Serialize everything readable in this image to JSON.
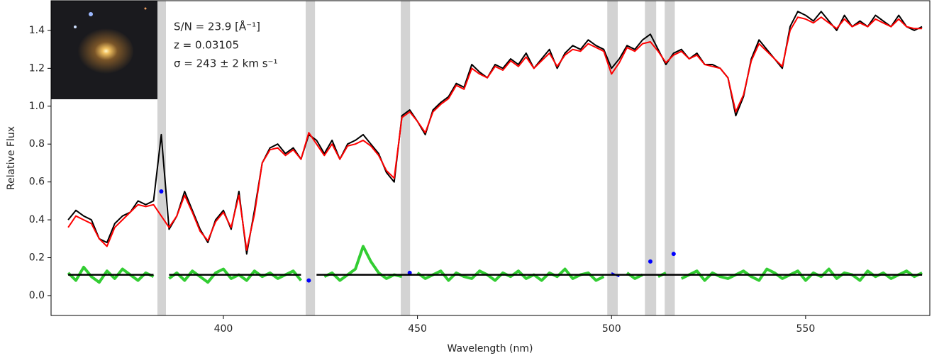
{
  "chart_data": {
    "type": "line",
    "xlabel": "Wavelength (nm)",
    "ylabel": "Relative Flux",
    "annotations": [
      "S/N = 23.9 [Å⁻¹]",
      "z =  0.03105",
      "σ = 243 ± 2 km s⁻¹"
    ],
    "xlim": [
      355.6,
      582.0
    ],
    "ylim": [
      -0.105,
      1.557
    ],
    "xticks": [
      400,
      450,
      500,
      550
    ],
    "yticks": [
      {
        "value": 0,
        "label": "0.0"
      },
      0.2,
      0.4,
      0.6,
      0.8,
      {
        "value": 1,
        "label": "1.0"
      },
      1.2,
      1.4
    ],
    "masks": {
      "color": "#d3d3d3",
      "ranges": [
        [
          383.0,
          385.2
        ],
        [
          421.2,
          423.6
        ],
        [
          445.7,
          448.1
        ],
        [
          498.9,
          501.6
        ],
        [
          508.6,
          511.5
        ],
        [
          513.7,
          516.3
        ]
      ]
    },
    "x": [
      360,
      362,
      364,
      366,
      368,
      370,
      372,
      374,
      376,
      378,
      380,
      382,
      384,
      386,
      388,
      390,
      392,
      394,
      396,
      398,
      400,
      402,
      404,
      406,
      408,
      410,
      412,
      414,
      416,
      418,
      420,
      422,
      424,
      426,
      428,
      430,
      432,
      434,
      436,
      438,
      440,
      442,
      444,
      446,
      448,
      450,
      452,
      454,
      456,
      458,
      460,
      462,
      464,
      466,
      468,
      470,
      472,
      474,
      476,
      478,
      480,
      482,
      484,
      486,
      488,
      490,
      492,
      494,
      496,
      498,
      500,
      502,
      504,
      506,
      508,
      510,
      512,
      514,
      516,
      518,
      520,
      522,
      524,
      526,
      528,
      530,
      532,
      534,
      536,
      538,
      540,
      542,
      544,
      546,
      548,
      550,
      552,
      554,
      556,
      558,
      560,
      562,
      564,
      566,
      568,
      570,
      572,
      574,
      576,
      578,
      580
    ],
    "series": [
      {
        "color": "#32cd32",
        "values": [
          0.12,
          0.08,
          0.15,
          0.1,
          0.07,
          0.13,
          0.09,
          0.14,
          0.11,
          0.08,
          0.12,
          0.1,
          null,
          0.09,
          0.12,
          0.08,
          0.13,
          0.1,
          0.07,
          0.12,
          0.14,
          0.09,
          0.11,
          0.08,
          0.13,
          0.1,
          0.12,
          0.09,
          0.11,
          0.13,
          0.08,
          null,
          null,
          0.1,
          0.12,
          0.08,
          0.11,
          0.14,
          0.26,
          0.18,
          0.12,
          0.09,
          0.11,
          0.1,
          null,
          0.12,
          0.09,
          0.11,
          0.13,
          0.08,
          0.12,
          0.1,
          0.09,
          0.13,
          0.11,
          0.08,
          0.12,
          0.1,
          0.13,
          0.09,
          0.11,
          0.08,
          0.12,
          0.1,
          0.14,
          0.09,
          0.11,
          0.12,
          0.08,
          0.1,
          null,
          null,
          0.12,
          0.09,
          0.11,
          null,
          0.1,
          0.12,
          null,
          0.09,
          0.11,
          0.13,
          0.08,
          0.12,
          0.1,
          0.09,
          0.11,
          0.13,
          0.1,
          0.08,
          0.14,
          0.12,
          0.09,
          0.11,
          0.13,
          0.08,
          0.12,
          0.1,
          0.14,
          0.09,
          0.12,
          0.11,
          0.08,
          0.13,
          0.1,
          0.12,
          0.09,
          0.11,
          0.13,
          0.1,
          0.12
        ]
      },
      {
        "color": "#0000ff",
        "values": [
          null,
          null,
          null,
          null,
          null,
          null,
          null,
          null,
          null,
          null,
          null,
          null,
          0.55,
          null,
          null,
          null,
          null,
          null,
          null,
          null,
          null,
          null,
          null,
          null,
          null,
          null,
          null,
          null,
          null,
          null,
          null,
          0.08,
          null,
          null,
          null,
          null,
          null,
          null,
          null,
          null,
          null,
          null,
          null,
          null,
          0.12,
          null,
          null,
          null,
          null,
          null,
          null,
          null,
          null,
          null,
          null,
          null,
          null,
          null,
          null,
          null,
          null,
          null,
          null,
          null,
          null,
          null,
          null,
          null,
          null,
          null,
          0.12,
          0.1,
          null,
          null,
          null,
          0.18,
          null,
          null,
          0.22,
          null,
          null,
          null,
          null,
          null,
          null,
          null,
          null,
          null,
          null,
          null,
          null,
          null,
          null,
          null,
          null,
          null,
          null,
          null,
          null,
          null,
          null,
          null,
          null,
          null,
          null,
          null,
          null,
          null,
          null,
          null,
          null
        ]
      },
      {
        "color": "#000000",
        "values": [
          0.11,
          0.11,
          0.11,
          0.11,
          0.11,
          0.11,
          0.11,
          0.11,
          0.11,
          0.11,
          0.11,
          0.11,
          null,
          0.11,
          0.11,
          0.11,
          0.11,
          0.11,
          0.11,
          0.11,
          0.11,
          0.11,
          0.11,
          0.11,
          0.11,
          0.11,
          0.11,
          0.11,
          0.11,
          0.11,
          0.11,
          null,
          0.11,
          0.11,
          0.11,
          0.11,
          0.11,
          0.11,
          0.11,
          0.11,
          0.11,
          0.11,
          0.11,
          0.11,
          0.11,
          0.11,
          0.11,
          0.11,
          0.11,
          0.11,
          0.11,
          0.11,
          0.11,
          0.11,
          0.11,
          0.11,
          0.11,
          0.11,
          0.11,
          0.11,
          0.11,
          0.11,
          0.11,
          0.11,
          0.11,
          0.11,
          0.11,
          0.11,
          0.11,
          0.11,
          0.11,
          0.11,
          0.11,
          0.11,
          0.11,
          0.11,
          0.11,
          0.11,
          0.11,
          0.11,
          0.11,
          0.11,
          0.11,
          0.11,
          0.11,
          0.11,
          0.11,
          0.11,
          0.11,
          0.11,
          0.11,
          0.11,
          0.11,
          0.11,
          0.11,
          0.11,
          0.11,
          0.11,
          0.11,
          0.11,
          0.11,
          0.11,
          0.11,
          0.11,
          0.11,
          0.11,
          0.11,
          0.11,
          0.11,
          0.11,
          0.11
        ]
      },
      {
        "color": "#000000",
        "values": [
          0.4,
          0.45,
          0.42,
          0.4,
          0.3,
          0.28,
          0.38,
          0.42,
          0.44,
          0.5,
          0.48,
          0.5,
          0.85,
          0.35,
          0.42,
          0.55,
          0.45,
          0.35,
          0.28,
          0.4,
          0.45,
          0.35,
          0.55,
          0.22,
          0.45,
          0.7,
          0.78,
          0.8,
          0.75,
          0.78,
          0.72,
          0.85,
          0.82,
          0.75,
          0.82,
          0.72,
          0.8,
          0.82,
          0.85,
          0.8,
          0.75,
          0.65,
          0.6,
          0.95,
          0.98,
          0.92,
          0.85,
          0.98,
          1.02,
          1.05,
          1.12,
          1.1,
          1.22,
          1.18,
          1.15,
          1.22,
          1.2,
          1.25,
          1.22,
          1.28,
          1.2,
          1.25,
          1.3,
          1.2,
          1.28,
          1.32,
          1.3,
          1.35,
          1.32,
          1.3,
          1.2,
          1.25,
          1.32,
          1.3,
          1.35,
          1.38,
          1.3,
          1.22,
          1.28,
          1.3,
          1.25,
          1.28,
          1.22,
          1.22,
          1.2,
          1.15,
          0.95,
          1.05,
          1.25,
          1.35,
          1.3,
          1.25,
          1.2,
          1.42,
          1.5,
          1.48,
          1.45,
          1.5,
          1.45,
          1.4,
          1.48,
          1.42,
          1.45,
          1.42,
          1.48,
          1.45,
          1.42,
          1.48,
          1.42,
          1.4,
          1.42
        ]
      },
      {
        "color": "#ff0000",
        "values": [
          0.36,
          0.42,
          0.4,
          0.38,
          0.3,
          0.26,
          0.36,
          0.4,
          0.44,
          0.48,
          0.47,
          0.48,
          0.42,
          0.36,
          0.42,
          0.53,
          0.44,
          0.34,
          0.29,
          0.39,
          0.44,
          0.36,
          0.53,
          0.24,
          0.43,
          0.7,
          0.77,
          0.78,
          0.74,
          0.77,
          0.72,
          0.86,
          0.8,
          0.74,
          0.8,
          0.72,
          0.79,
          0.8,
          0.82,
          0.79,
          0.74,
          0.66,
          0.62,
          0.94,
          0.97,
          0.92,
          0.86,
          0.97,
          1.01,
          1.04,
          1.11,
          1.09,
          1.2,
          1.17,
          1.15,
          1.21,
          1.19,
          1.24,
          1.21,
          1.26,
          1.2,
          1.24,
          1.28,
          1.21,
          1.27,
          1.3,
          1.29,
          1.33,
          1.31,
          1.29,
          1.17,
          1.23,
          1.31,
          1.29,
          1.33,
          1.34,
          1.29,
          1.23,
          1.27,
          1.29,
          1.25,
          1.27,
          1.22,
          1.21,
          1.2,
          1.15,
          0.97,
          1.06,
          1.24,
          1.33,
          1.29,
          1.25,
          1.21,
          1.4,
          1.47,
          1.46,
          1.44,
          1.47,
          1.44,
          1.41,
          1.46,
          1.42,
          1.44,
          1.42,
          1.46,
          1.44,
          1.42,
          1.46,
          1.42,
          1.41,
          1.41
        ]
      }
    ]
  }
}
